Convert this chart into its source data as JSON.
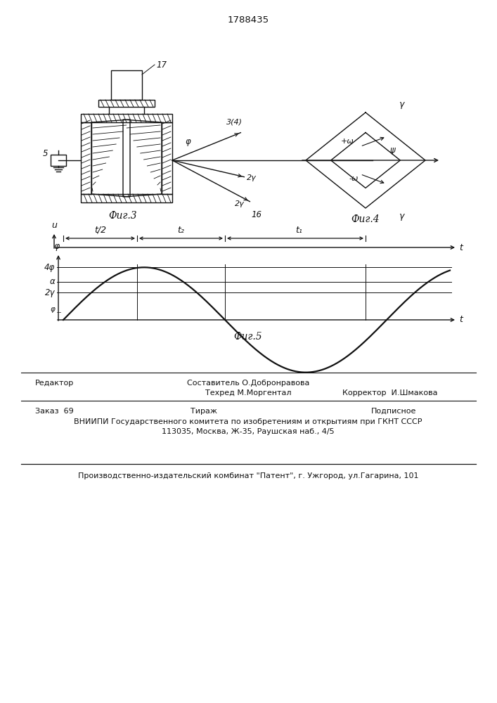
{
  "title": "1788435",
  "fig3_label": "Фиг.3",
  "fig4_label": "Фиг.4",
  "fig5_label": "Фиг.5",
  "footer_editor": "Редактор",
  "footer_compiler": "Составитель О.Добронравова",
  "footer_techred": "Техред М.Моргентал",
  "footer_corrector": "Корректор  И.Шмакова",
  "footer_order": "Заказ  69",
  "footer_tirage": "Тираж",
  "footer_podpisnoe": "Подписное",
  "footer_vniiipi": "ВНИИПИ Государственного комитета по изобретениям и открытиям при ГКНТ СССР",
  "footer_address": "113035, Москва, Ж-35, Раушская наб., 4/5",
  "footer_patent": "Производственно-издательский комбинат \"Патент\", г. Ужгород, ул.Гагарина, 101",
  "bg_color": "#ffffff",
  "line_color": "#111111"
}
